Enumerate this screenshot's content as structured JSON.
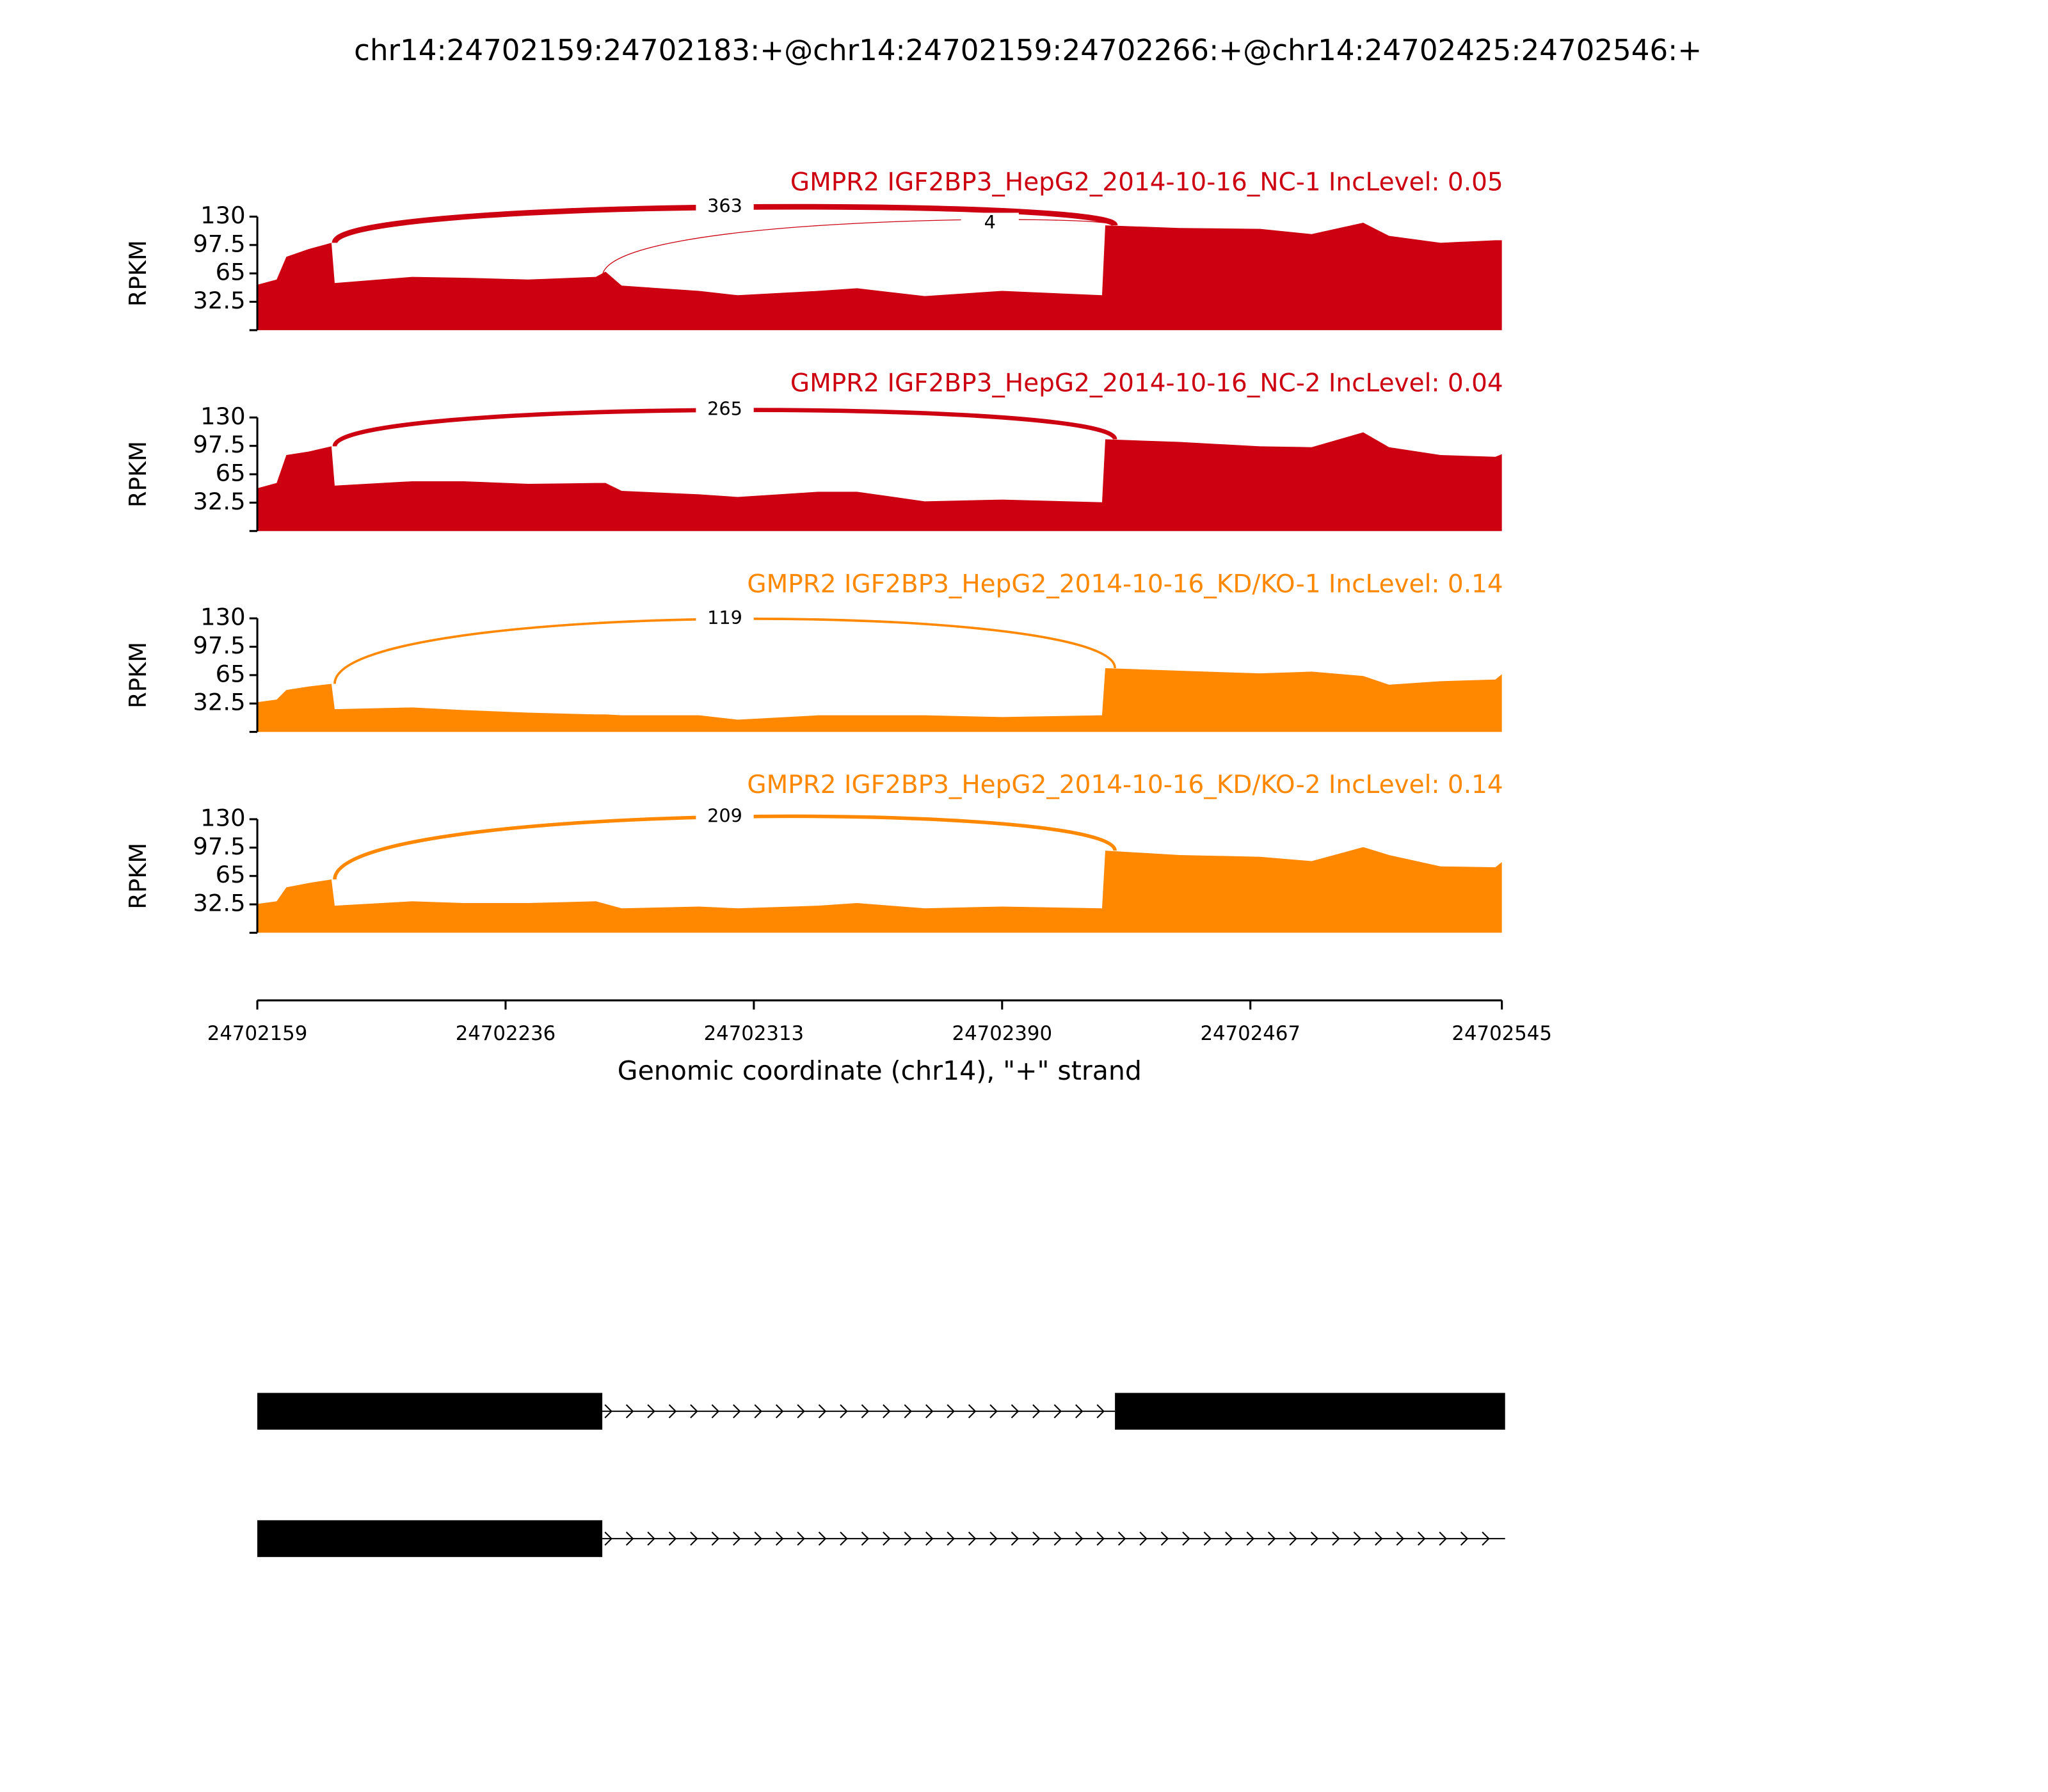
{
  "title": "chr14:24702159:24702183:+@chr14:24702159:24702266:+@chr14:24702425:24702546:+",
  "chart_data": [
    {
      "type": "area",
      "title": "GMPR2 IGF2BP3_HepG2_2014-10-16_NC-1 IncLevel: 0.05",
      "color": "#cc0011",
      "ylabel": "RPKM",
      "ylim": [
        0,
        130
      ],
      "yticks": [
        32.5,
        65,
        97.5,
        130
      ],
      "x": [
        24702159,
        24702165,
        24702168,
        24702175,
        24702182,
        24702183,
        24702207,
        24702223,
        24702243,
        24702264,
        24702267,
        24702272,
        24702296,
        24702308,
        24702333,
        24702345,
        24702366,
        24702390,
        24702421,
        24702422,
        24702445,
        24702470,
        24702486,
        24702502,
        24702510,
        24702526,
        24702543,
        24702545
      ],
      "values": [
        52,
        58,
        84,
        93,
        100,
        54,
        61,
        60,
        58,
        61,
        67,
        51,
        45,
        40,
        45,
        48,
        39,
        45,
        40,
        120,
        117,
        116,
        110,
        123,
        108,
        100,
        103,
        103
      ],
      "junctions": [
        {
          "start": 24702183,
          "end": 24702425,
          "count": 363
        },
        {
          "start": 24702266,
          "end": 24702425,
          "count": 4
        }
      ]
    },
    {
      "type": "area",
      "title": "GMPR2 IGF2BP3_HepG2_2014-10-16_NC-2 IncLevel: 0.04",
      "color": "#cc0011",
      "ylabel": "RPKM",
      "ylim": [
        0,
        130
      ],
      "yticks": [
        32.5,
        65,
        97.5,
        130
      ],
      "x": [
        24702159,
        24702165,
        24702168,
        24702175,
        24702182,
        24702183,
        24702207,
        24702223,
        24702243,
        24702264,
        24702267,
        24702272,
        24702296,
        24702308,
        24702333,
        24702345,
        24702366,
        24702390,
        24702421,
        24702422,
        24702445,
        24702470,
        24702486,
        24702502,
        24702510,
        24702526,
        24702543,
        24702545
      ],
      "values": [
        49,
        55,
        87,
        91,
        97,
        52,
        57,
        57,
        54,
        55,
        55,
        46,
        42,
        39,
        45,
        45,
        34,
        36,
        33,
        105,
        102,
        97,
        96,
        113,
        96,
        87,
        85,
        88
      ],
      "junctions": [
        {
          "start": 24702183,
          "end": 24702425,
          "count": 265
        }
      ]
    },
    {
      "type": "area",
      "title": "GMPR2 IGF2BP3_HepG2_2014-10-16_KD/KO-1 IncLevel: 0.14",
      "color": "#ff8800",
      "ylabel": "RPKM",
      "ylim": [
        0,
        130
      ],
      "yticks": [
        32.5,
        65,
        97.5,
        130
      ],
      "x": [
        24702159,
        24702165,
        24702168,
        24702175,
        24702182,
        24702183,
        24702207,
        24702223,
        24702243,
        24702264,
        24702267,
        24702272,
        24702296,
        24702308,
        24702333,
        24702345,
        24702366,
        24702390,
        24702421,
        24702422,
        24702445,
        24702470,
        24702486,
        24702502,
        24702510,
        24702526,
        24702543,
        24702545
      ],
      "values": [
        34,
        37,
        48,
        52,
        55,
        26,
        28,
        25,
        22,
        20,
        20,
        19,
        19,
        14,
        19,
        19,
        19,
        17,
        19,
        73,
        70,
        67,
        69,
        64,
        54,
        58,
        60,
        66
      ],
      "junctions": [
        {
          "start": 24702183,
          "end": 24702425,
          "count": 119
        }
      ]
    },
    {
      "type": "area",
      "title": "GMPR2 IGF2BP3_HepG2_2014-10-16_KD/KO-2 IncLevel: 0.14",
      "color": "#ff8800",
      "ylabel": "RPKM",
      "ylim": [
        0,
        130
      ],
      "yticks": [
        32.5,
        65,
        97.5,
        130
      ],
      "x": [
        24702159,
        24702165,
        24702168,
        24702175,
        24702182,
        24702183,
        24702207,
        24702223,
        24702243,
        24702264,
        24702267,
        24702272,
        24702296,
        24702308,
        24702333,
        24702345,
        24702366,
        24702390,
        24702421,
        24702422,
        24702445,
        24702470,
        24702486,
        24702502,
        24702510,
        24702526,
        24702543,
        24702545
      ],
      "values": [
        33,
        36,
        52,
        57,
        61,
        31,
        36,
        34,
        34,
        36,
        33,
        28,
        30,
        28,
        31,
        34,
        28,
        30,
        28,
        94,
        89,
        87,
        82,
        98,
        89,
        76,
        75,
        81
      ],
      "junctions": [
        {
          "start": 24702183,
          "end": 24702425,
          "count": 209
        }
      ]
    }
  ],
  "x_axis": {
    "xlim": [
      24702159,
      24702545
    ],
    "xticks": [
      24702159,
      24702236,
      24702313,
      24702390,
      24702467,
      24702545
    ],
    "xlabel": "Genomic coordinate (chr14), \"+\" strand"
  },
  "transcripts": [
    {
      "exons": [
        [
          24702159,
          24702266
        ],
        [
          24702425,
          24702546
        ]
      ]
    },
    {
      "exons": [
        [
          24702159,
          24702266
        ]
      ],
      "end": 24702546
    }
  ]
}
